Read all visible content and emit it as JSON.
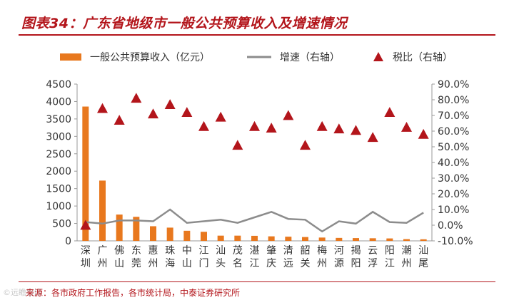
{
  "header": {
    "title": "图表34：广东省地级市一般公共预算收入及增速情况"
  },
  "footer": {
    "source": "来源：各市政府工作报告，各市统计局，中泰证券研究所",
    "watermark": "©远瞻智库"
  },
  "chart_data": {
    "type": "bar",
    "categories": [
      "深圳",
      "广州",
      "佛山",
      "东莞",
      "惠州",
      "珠海",
      "中山",
      "江门",
      "汕头",
      "茂名",
      "湛江",
      "肇庆",
      "清远",
      "韶关",
      "梅州",
      "河源",
      "揭阳",
      "云浮",
      "阳江",
      "潮州",
      "汕尾"
    ],
    "series": [
      {
        "name": "一般公共预算收入（亿元）",
        "type": "bar",
        "axis": "left",
        "color": "#e8781e",
        "values": [
          3855,
          1730,
          755,
          690,
          420,
          380,
          290,
          260,
          150,
          150,
          145,
          130,
          120,
          110,
          95,
          85,
          80,
          75,
          70,
          50,
          45
        ]
      },
      {
        "name": "增速（右轴）",
        "type": "line",
        "axis": "right",
        "color": "#8c8c8c",
        "values": [
          2.0,
          1.0,
          3.0,
          3.0,
          2.5,
          10.0,
          1.5,
          2.5,
          3.5,
          1.5,
          5.0,
          8.5,
          4.0,
          3.5,
          -4.0,
          2.5,
          1.0,
          8.5,
          2.0,
          1.5,
          8.0
        ]
      },
      {
        "name": "税比（右轴）",
        "type": "scatter",
        "axis": "right",
        "color": "#b3151b",
        "values": [
          0.0,
          74.5,
          67.0,
          81.0,
          71.0,
          77.0,
          72.0,
          63.0,
          69.0,
          51.0,
          63.0,
          62.0,
          70.0,
          51.0,
          63.0,
          61.5,
          60.5,
          56.0,
          72.0,
          62.5,
          58.0
        ]
      }
    ],
    "left_axis": {
      "ylim": [
        0,
        4500
      ],
      "ticks": [
        "0",
        "500",
        "1000",
        "1500",
        "2000",
        "2500",
        "3000",
        "3500",
        "4000",
        "4500"
      ]
    },
    "right_axis": {
      "ylim": [
        -10,
        90
      ],
      "ticks": [
        "-10.0%",
        "0.0%",
        "10.0%",
        "20.0%",
        "30.0%",
        "40.0%",
        "50.0%",
        "60.0%",
        "70.0%",
        "80.0%",
        "90.0%"
      ]
    },
    "legend": {
      "placement": "top",
      "items": [
        "一般公共预算收入（亿元）",
        "增速（右轴）",
        "税比（右轴）"
      ]
    },
    "grid": false
  }
}
